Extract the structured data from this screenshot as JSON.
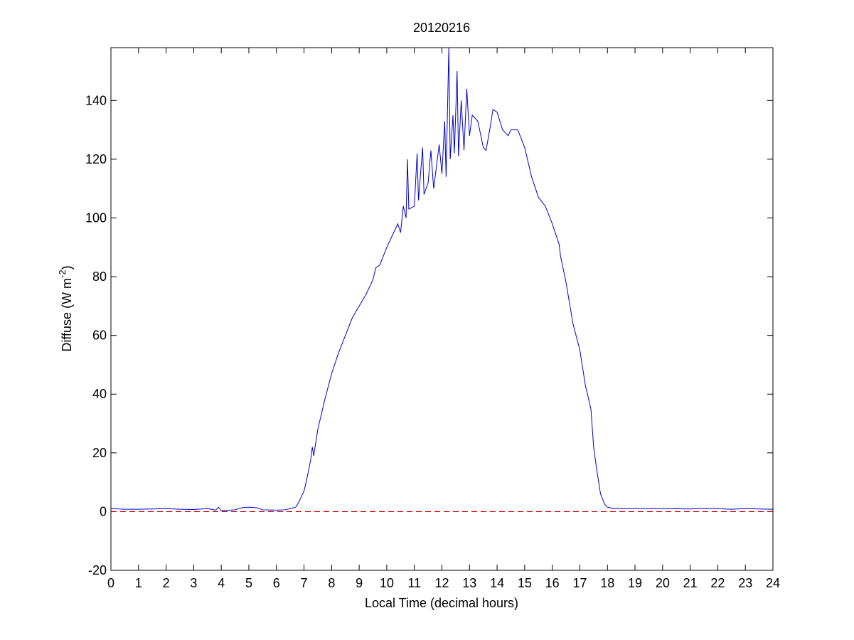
{
  "chart_data": {
    "type": "line",
    "title": "20120216",
    "x_label": "Local Time (decimal hours)",
    "y_label": "Diffuse (W m",
    "y_label_superscript": "-2",
    "y_label_suffix": ")",
    "xlim": [
      0,
      24
    ],
    "ylim": [
      -20,
      158
    ],
    "xticks": [
      0,
      1,
      2,
      3,
      4,
      5,
      6,
      7,
      8,
      9,
      10,
      11,
      12,
      13,
      14,
      15,
      16,
      17,
      18,
      19,
      20,
      21,
      22,
      23,
      24
    ],
    "yticks": [
      -20,
      0,
      20,
      40,
      60,
      80,
      100,
      120,
      140
    ],
    "hlines": [
      {
        "value": 0,
        "color": "#cc0000",
        "style": "dashed"
      }
    ],
    "series": [
      {
        "color": "#0000c8",
        "x": [
          0,
          0.5,
          1,
          1.5,
          2,
          2.5,
          3,
          3.5,
          3.8,
          3.9,
          4,
          4.3,
          4.5,
          4.8,
          5,
          5.3,
          5.5,
          6,
          6.3,
          6.5,
          6.7,
          6.8,
          7,
          7.1,
          7.25,
          7.3,
          7.35,
          7.5,
          7.75,
          8,
          8.25,
          8.5,
          8.75,
          9,
          9.25,
          9.5,
          9.6,
          9.75,
          10,
          10.25,
          10.4,
          10.5,
          10.6,
          10.7,
          10.75,
          10.8,
          11,
          11.1,
          11.15,
          11.3,
          11.35,
          11.5,
          11.6,
          11.7,
          11.9,
          12,
          12.1,
          12.15,
          12.25,
          12.3,
          12.4,
          12.45,
          12.55,
          12.6,
          12.7,
          12.8,
          12.9,
          13,
          13.1,
          13.3,
          13.5,
          13.6,
          13.75,
          13.85,
          14,
          14.2,
          14.4,
          14.5,
          14.75,
          15,
          15.25,
          15.5,
          15.75,
          16,
          16.25,
          16.3,
          16.5,
          16.75,
          17,
          17.2,
          17.4,
          17.5,
          17.6,
          17.75,
          17.9,
          18,
          18.25,
          19,
          20,
          21,
          21.5,
          22,
          22.5,
          23,
          23.5,
          24
        ],
        "values": [
          1,
          0.8,
          0.8,
          0.9,
          1,
          0.8,
          0.7,
          1,
          0.5,
          1.5,
          0.3,
          0.5,
          0.6,
          1.4,
          1.5,
          1.3,
          0.6,
          0.5,
          0.6,
          1,
          1.5,
          3,
          7,
          11,
          18,
          22,
          19,
          28,
          38,
          47,
          54,
          60,
          66,
          70,
          74,
          79,
          83,
          84,
          90,
          95,
          98,
          95,
          104,
          100,
          120,
          103,
          104,
          122,
          106,
          124,
          108,
          112,
          123,
          110,
          125,
          115,
          133,
          114,
          158,
          120,
          135,
          122,
          150,
          121,
          140,
          123,
          144,
          128,
          135,
          133,
          124,
          123,
          131,
          137,
          136,
          130,
          128,
          130,
          130,
          124,
          114,
          107,
          104,
          98,
          91,
          87,
          78,
          64,
          55,
          43,
          35,
          22,
          15,
          6,
          2.5,
          1.5,
          1,
          1,
          1,
          0.9,
          1.1,
          1,
          0.8,
          1,
          0.9,
          0.8
        ]
      }
    ]
  }
}
